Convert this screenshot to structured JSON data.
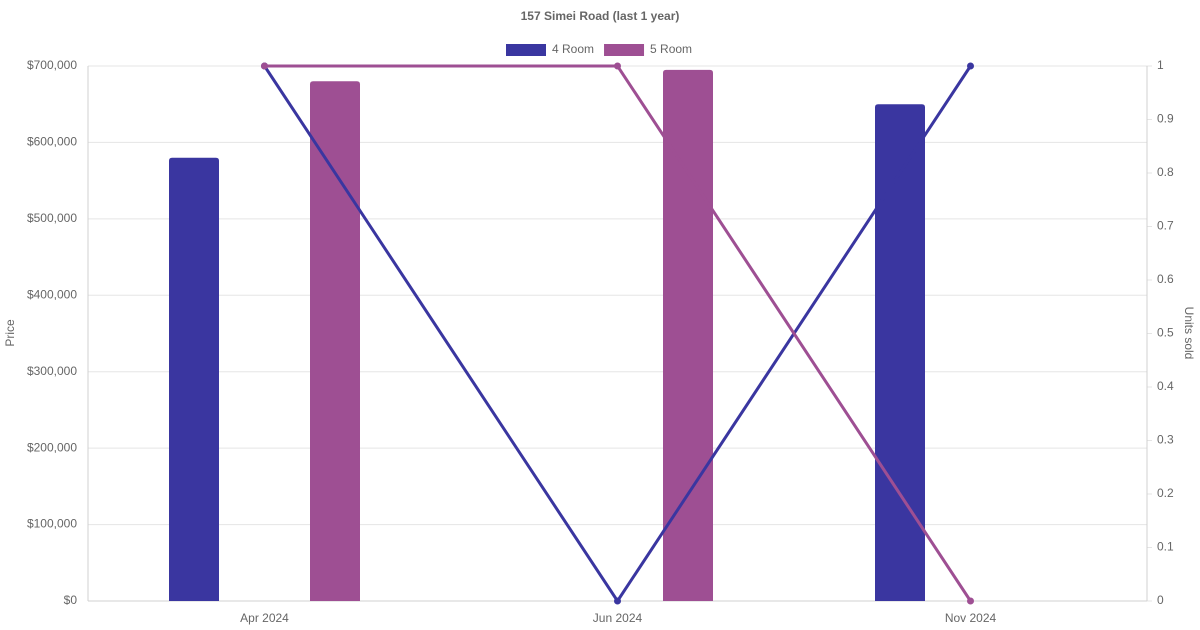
{
  "chart_data": {
    "type": "bar-line",
    "title": "157 Simei Road (last 1 year)",
    "y_label": "Price",
    "y2_label": "Units sold",
    "categories": [
      "Apr 2024",
      "Jun 2024",
      "Nov 2024"
    ],
    "series": [
      {
        "name": "4 Room",
        "color": "#3a36a0",
        "values": [
          580000,
          null,
          650000
        ],
        "units_sold": [
          1,
          0,
          1
        ]
      },
      {
        "name": "5 Room",
        "color": "#9e4f93",
        "values": [
          680000,
          695000,
          null
        ],
        "units_sold": [
          1,
          1,
          0
        ]
      }
    ],
    "ylim": [
      0,
      700000
    ],
    "yticks": [
      {
        "value": 0,
        "label": "$0"
      },
      {
        "value": 100000,
        "label": "$100,000"
      },
      {
        "value": 200000,
        "label": "$200,000"
      },
      {
        "value": 300000,
        "label": "$300,000"
      },
      {
        "value": 400000,
        "label": "$400,000"
      },
      {
        "value": 500000,
        "label": "$500,000"
      },
      {
        "value": 600000,
        "label": "$600,000"
      },
      {
        "value": 700000,
        "label": "$700,000"
      }
    ],
    "y2lim": [
      0,
      1
    ],
    "y2ticks": [
      0,
      0.1,
      0.2,
      0.3,
      0.4,
      0.5,
      0.6,
      0.7,
      0.8,
      0.9,
      1
    ],
    "grid": true,
    "legend": "top"
  }
}
